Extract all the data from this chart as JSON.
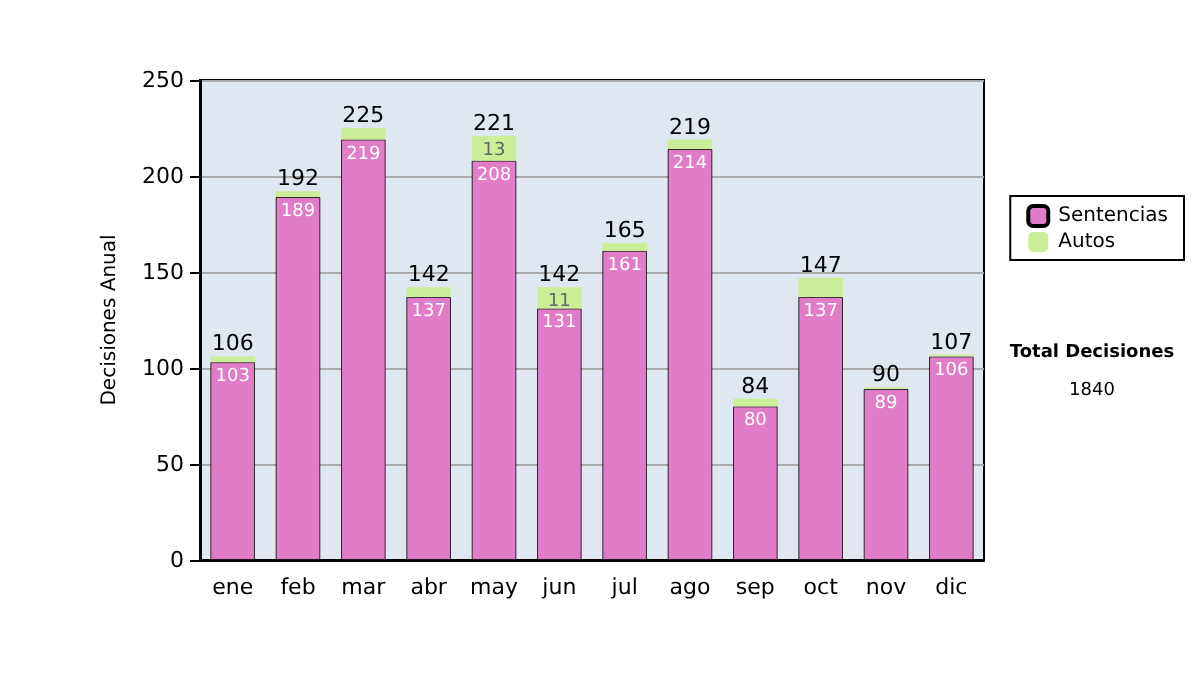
{
  "chart_data": {
    "type": "bar",
    "stacked": true,
    "ylabel": "Decisiones Anual",
    "categories": [
      "ene",
      "feb",
      "mar",
      "abr",
      "may",
      "jun",
      "jul",
      "ago",
      "sep",
      "oct",
      "nov",
      "dic"
    ],
    "series": [
      {
        "name": "Sentencias",
        "color": "#e07cc8",
        "values": [
          103,
          189,
          219,
          137,
          208,
          131,
          161,
          214,
          80,
          137,
          89,
          106
        ],
        "value_labels": [
          "103",
          "189",
          "219",
          "137",
          "208",
          "131",
          "161",
          "214",
          "80",
          "137",
          "89",
          "106"
        ]
      },
      {
        "name": "Autos",
        "color": "#ccee99",
        "values": [
          3,
          3,
          6,
          5,
          13,
          11,
          4,
          5,
          4,
          10,
          1,
          1
        ],
        "value_labels": [
          null,
          null,
          null,
          null,
          "13",
          "11",
          null,
          null,
          null,
          null,
          null,
          null
        ]
      }
    ],
    "totals": [
      "106",
      "192",
      "225",
      "142",
      "221",
      "142",
      "165",
      "219",
      "84",
      "147",
      "90",
      "107"
    ],
    "ylim": [
      0,
      250
    ],
    "yticks": [
      0,
      50,
      100,
      150,
      200,
      250
    ],
    "grid": "y",
    "legend": "right",
    "annotations": [
      "Total Decisiones",
      "1840"
    ]
  }
}
